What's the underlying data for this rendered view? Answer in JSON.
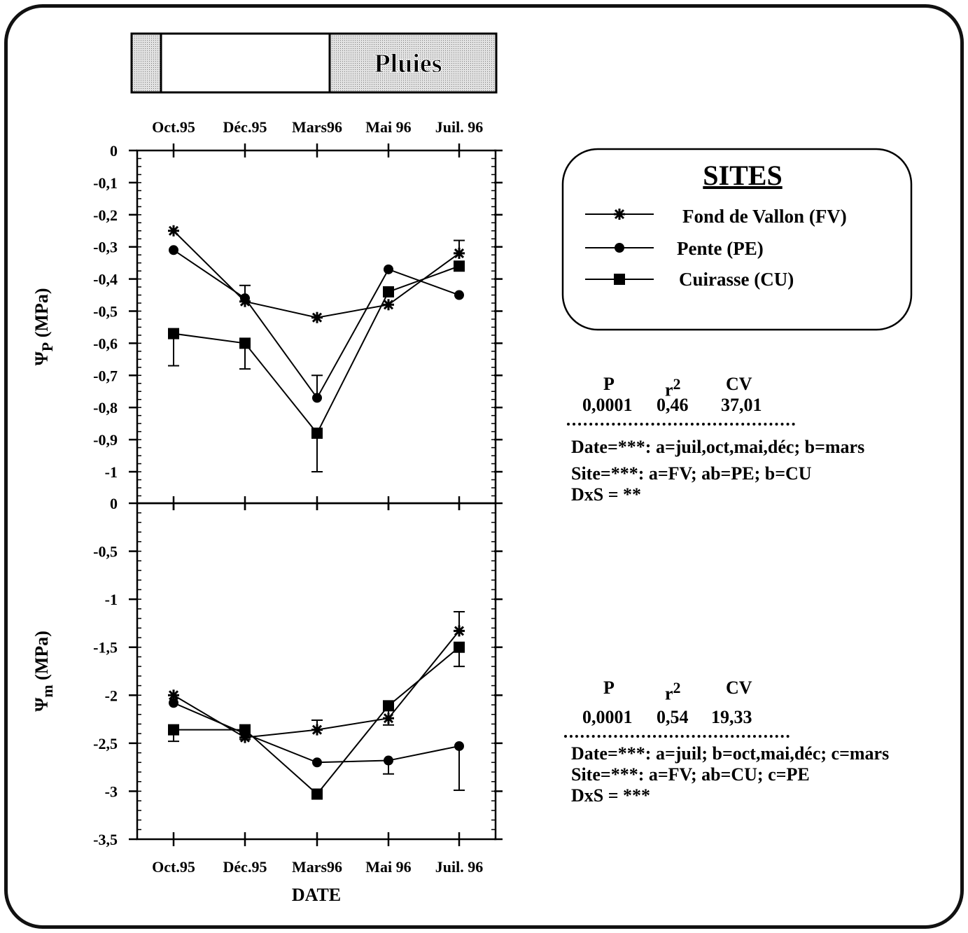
{
  "rain_bar": {
    "label": "Pluies"
  },
  "dates": [
    "Oct.95",
    "Déc.95",
    "Mars96",
    "Mai 96",
    "Juil. 96"
  ],
  "legend": {
    "title": "SITES",
    "items": [
      {
        "label": "Fond de Vallon (FV)",
        "marker": "asterisk"
      },
      {
        "label": "Pente (PE)",
        "marker": "circle"
      },
      {
        "label": "Cuirasse (CU)",
        "marker": "square"
      }
    ]
  },
  "stats_top": {
    "p_label": "P",
    "r2_label": "r",
    "r2_sup": "2",
    "cv_label": "CV",
    "p": "0,0001",
    "r2": "0,46",
    "cv": "37,01",
    "lines": [
      "Date=***: a=juil,oct,mai,déc; b=mars",
      "Site=***: a=FV; ab=PE; b=CU",
      "DxS = **"
    ]
  },
  "stats_bottom": {
    "p_label": "P",
    "r2_label": "r",
    "r2_sup": "2",
    "cv_label": "CV",
    "p": "0,0001",
    "r2": "0,54",
    "cv": "19,33",
    "lines": [
      "Date=***: a=juil; b=oct,mai,déc; c=mars",
      "Site=***: a=FV; ab=CU; c=PE",
      "DxS = ***"
    ]
  },
  "chart_data": [
    {
      "type": "line",
      "ylabel": "Ψ",
      "ylabel_sub": "P",
      "ylabel_unit": "(MPa)",
      "x": [
        "Oct.95",
        "Déc.95",
        "Mars96",
        "Mai 96",
        "Juil. 96"
      ],
      "ylim": [
        -1.1,
        0
      ],
      "yticks": [
        0,
        -0.1,
        -0.2,
        -0.3,
        -0.4,
        -0.5,
        -0.6,
        -0.7,
        -0.8,
        -0.9,
        -1
      ],
      "ytick_labels": [
        "0",
        "-0,1",
        "-0,2",
        "-0,3",
        "-0,4",
        "-0,5",
        "-0,6",
        "-0,7",
        "-0,8",
        "-0,9",
        "-1"
      ],
      "series": [
        {
          "name": "Fond de Vallon (FV)",
          "marker": "asterisk",
          "values": [
            -0.25,
            -0.47,
            -0.52,
            -0.48,
            -0.32
          ],
          "errors": [
            null,
            0.05,
            null,
            null,
            0.04
          ]
        },
        {
          "name": "Pente (PE)",
          "marker": "circle",
          "values": [
            -0.31,
            -0.46,
            -0.77,
            -0.37,
            -0.45
          ],
          "errors": [
            null,
            null,
            0.07,
            null,
            null
          ]
        },
        {
          "name": "Cuirasse (CU)",
          "marker": "square",
          "values": [
            -0.57,
            -0.6,
            -0.88,
            -0.44,
            -0.36
          ],
          "errors": [
            0.1,
            0.08,
            0.12,
            null,
            null
          ]
        }
      ]
    },
    {
      "type": "line",
      "ylabel": "Ψ",
      "ylabel_sub": "m",
      "ylabel_unit": "(MPa)",
      "xlabel": "DATE",
      "x": [
        "Oct.95",
        "Déc.95",
        "Mars96",
        "Mai 96",
        "Juil. 96"
      ],
      "ylim": [
        -3.5,
        0
      ],
      "yticks": [
        0,
        -0.5,
        -1,
        -1.5,
        -2,
        -2.5,
        -3,
        -3.5
      ],
      "ytick_labels": [
        "0",
        "-0,5",
        "-1",
        "-1,5",
        "-2",
        "-2,5",
        "-3",
        "-3,5"
      ],
      "series": [
        {
          "name": "Fond de Vallon (FV)",
          "marker": "asterisk",
          "values": [
            -2.0,
            -2.44,
            -2.36,
            -2.24,
            -1.33
          ],
          "errors": [
            null,
            null,
            0.1,
            null,
            0.2
          ]
        },
        {
          "name": "Pente (PE)",
          "marker": "circle",
          "values": [
            -2.08,
            -2.4,
            -2.7,
            -2.68,
            -2.53
          ],
          "errors": [
            null,
            null,
            null,
            0.14,
            0.46
          ]
        },
        {
          "name": "Cuirasse (CU)",
          "marker": "square",
          "values": [
            -2.36,
            -2.36,
            -3.03,
            -2.11,
            -1.5
          ],
          "errors": [
            0.12,
            0.1,
            null,
            0.2,
            0.2
          ]
        }
      ]
    }
  ]
}
